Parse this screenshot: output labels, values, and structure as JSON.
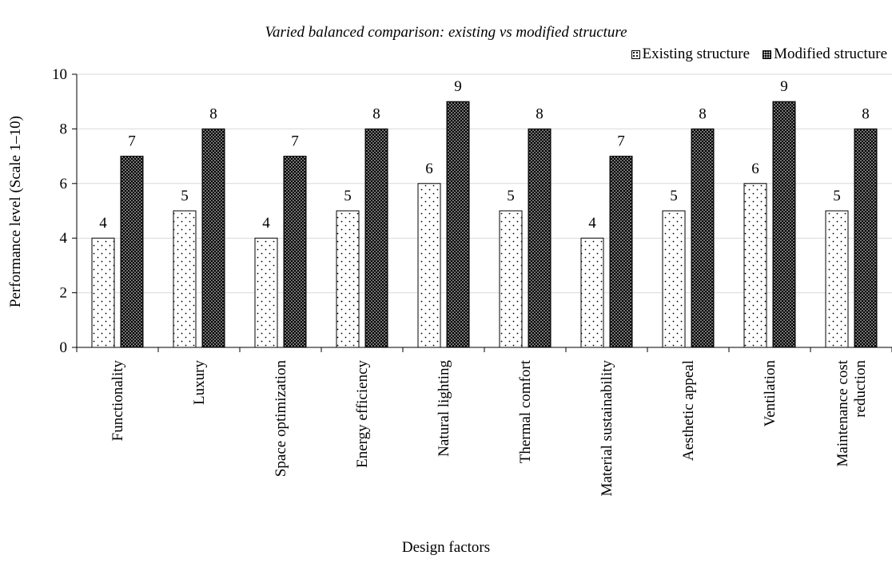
{
  "chart_data": {
    "type": "bar",
    "title": "Varied balanced comparison: existing vs modified structure",
    "xlabel": "Design factors",
    "ylabel": "Performance level (Scale 1–10)",
    "ylim": [
      0,
      10
    ],
    "yticks": [
      0,
      2,
      4,
      6,
      8,
      10
    ],
    "grid": true,
    "legend_position": "top-right",
    "categories": [
      "Functionality",
      "Luxury",
      "Space optimization",
      "Energy efficiency",
      "Natural lighting",
      "Thermal comfort",
      "Material sustainability",
      "Aesthetic appeal",
      "Ventilation",
      "Maintenance cost reduction"
    ],
    "series": [
      {
        "name": "Existing structure",
        "values": [
          4,
          5,
          4,
          5,
          6,
          5,
          4,
          5,
          6,
          5
        ],
        "color": "#ffffff",
        "pattern": "sparse black dots"
      },
      {
        "name": "Modified structure",
        "values": [
          7,
          8,
          7,
          8,
          9,
          8,
          7,
          8,
          9,
          8
        ],
        "color": "#000000",
        "pattern": "dense white dots"
      }
    ]
  }
}
